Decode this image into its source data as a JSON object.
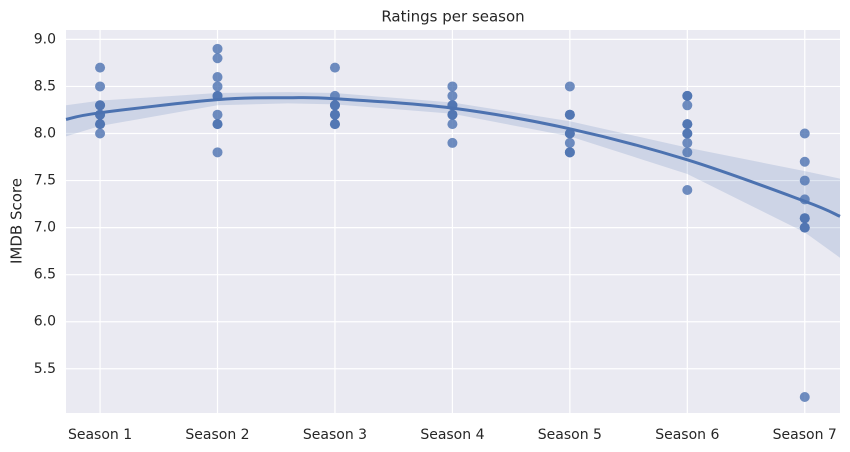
{
  "chart_data": {
    "type": "scatter",
    "title": "Ratings per season",
    "y_label": "IMDB Score",
    "xlim": [
      0.71,
      7.3
    ],
    "ylim": [
      5.03,
      9.1
    ],
    "xticks": [
      {
        "value": 1,
        "label": "Season 1"
      },
      {
        "value": 2,
        "label": "Season 2"
      },
      {
        "value": 3,
        "label": "Season 3"
      },
      {
        "value": 4,
        "label": "Season 4"
      },
      {
        "value": 5,
        "label": "Season 5"
      },
      {
        "value": 6,
        "label": "Season 6"
      },
      {
        "value": 7,
        "label": "Season 7"
      }
    ],
    "yticks": [
      {
        "value": 5.5,
        "label": "5.5"
      },
      {
        "value": 6,
        "label": "6.0"
      },
      {
        "value": 6.5,
        "label": "6.5"
      },
      {
        "value": 7,
        "label": "7.0"
      },
      {
        "value": 7.5,
        "label": "7.5"
      },
      {
        "value": 8,
        "label": "8.0"
      },
      {
        "value": 8.5,
        "label": "8.5"
      },
      {
        "value": 9,
        "label": "9.0"
      }
    ],
    "grid": true,
    "color": "#4c72b0",
    "points": {
      "x": [
        1,
        1,
        1,
        1,
        1,
        1,
        1,
        1,
        1,
        2,
        2,
        2,
        2,
        2,
        2,
        2,
        2,
        2,
        2,
        3,
        3,
        3,
        3,
        3,
        3,
        3,
        3,
        4,
        4,
        4,
        4,
        4,
        4,
        4,
        4,
        5,
        5,
        5,
        5,
        5,
        5,
        5,
        5,
        6,
        6,
        6,
        6,
        6,
        6,
        6,
        6,
        6,
        6,
        7,
        7,
        7,
        7,
        7,
        7,
        7,
        7,
        7
      ],
      "y": [
        8.7,
        8.5,
        8.3,
        8.3,
        8.2,
        8.2,
        8.1,
        8.1,
        8.0,
        8.9,
        8.8,
        8.6,
        8.5,
        8.4,
        8.4,
        8.2,
        8.1,
        8.1,
        7.8,
        8.7,
        8.4,
        8.3,
        8.3,
        8.2,
        8.2,
        8.1,
        8.1,
        8.5,
        8.4,
        8.3,
        8.3,
        8.2,
        8.2,
        8.1,
        7.9,
        8.5,
        8.2,
        8.2,
        8.0,
        8.0,
        7.9,
        7.8,
        7.8,
        8.4,
        8.4,
        8.3,
        8.1,
        8.1,
        8.0,
        8.0,
        7.9,
        7.8,
        7.4,
        8.0,
        7.7,
        7.5,
        7.3,
        7.1,
        7.1,
        7.0,
        7.0,
        5.2
      ]
    },
    "fit": {
      "x": [
        0.71,
        1,
        2,
        2.6,
        3,
        4,
        5,
        6,
        7,
        7.3
      ],
      "y": [
        8.15,
        8.22,
        8.36,
        8.38,
        8.37,
        8.27,
        8.05,
        7.72,
        7.28,
        7.12
      ],
      "ci_low": [
        7.97,
        8.08,
        8.3,
        8.32,
        8.31,
        8.21,
        7.97,
        7.57,
        6.95,
        6.68
      ],
      "ci_high": [
        8.3,
        8.35,
        8.43,
        8.44,
        8.43,
        8.33,
        8.13,
        7.85,
        7.6,
        7.52
      ]
    }
  }
}
